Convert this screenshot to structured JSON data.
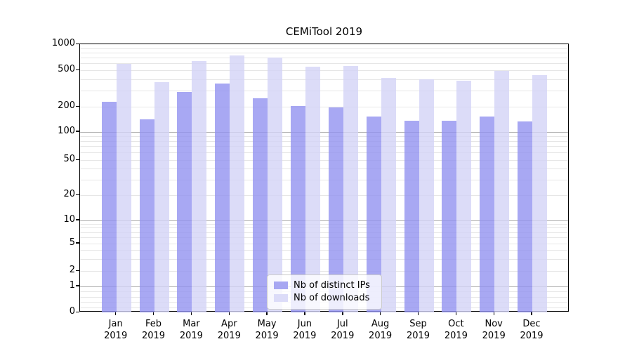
{
  "chart_data": {
    "type": "bar",
    "title": "CEMiTool 2019",
    "categories": [
      "Jan",
      "Feb",
      "Mar",
      "Apr",
      "May",
      "Jun",
      "Jul",
      "Aug",
      "Sep",
      "Oct",
      "Nov",
      "Dec"
    ],
    "category_year": "2019",
    "series": [
      {
        "name": "distinct-ips",
        "label": "Nb of distinct IPs",
        "color": "rgba(146,146,240,0.8)",
        "swatch_color": "#a7a7f2",
        "values": [
          225,
          142,
          290,
          360,
          248,
          205,
          195,
          152,
          136,
          136,
          152,
          134
        ]
      },
      {
        "name": "downloads",
        "label": "Nb of downloads",
        "color": "rgba(211,211,246,0.8)",
        "swatch_color": "#dcdcf8",
        "values": [
          590,
          370,
          640,
          740,
          700,
          545,
          555,
          410,
          395,
          385,
          495,
          440
        ]
      }
    ],
    "y_ticks": [
      0,
      1,
      2,
      5,
      10,
      20,
      50,
      100,
      200,
      500,
      1000
    ],
    "y_tick_labels": [
      "0",
      "1",
      "2",
      "5",
      "10",
      "20",
      "50",
      "100",
      "200",
      "500",
      "1000"
    ],
    "ylim": [
      0,
      1000
    ],
    "y_scale": "log-with-zero-baseline",
    "grid": true,
    "legend_position": "lower center",
    "legend_labels": [
      "Nb of distinct IPs",
      "Nb of downloads"
    ],
    "colors": {
      "major_grid": "#b0b0b0",
      "minor_grid": "#e6e6e6",
      "axis": "#000000",
      "background": "#ffffff"
    }
  }
}
